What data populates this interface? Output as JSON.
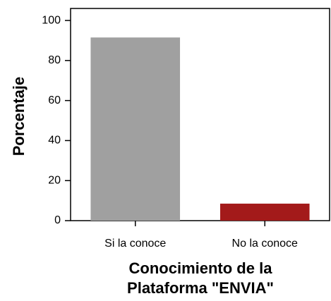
{
  "chart_data": {
    "type": "bar",
    "ylabel": "Porcentaje",
    "xlabel": [
      "Conocimiento de la",
      "Plataforma \"ENVIA\""
    ],
    "categories": [
      "Si la conoce",
      "No la conoce"
    ],
    "values": [
      91.5,
      8.5
    ],
    "colors": [
      "#a0a0a0",
      "#a31a1a"
    ],
    "ylim": [
      0,
      106
    ],
    "yticks": [
      0,
      20,
      40,
      60,
      80,
      100
    ]
  }
}
